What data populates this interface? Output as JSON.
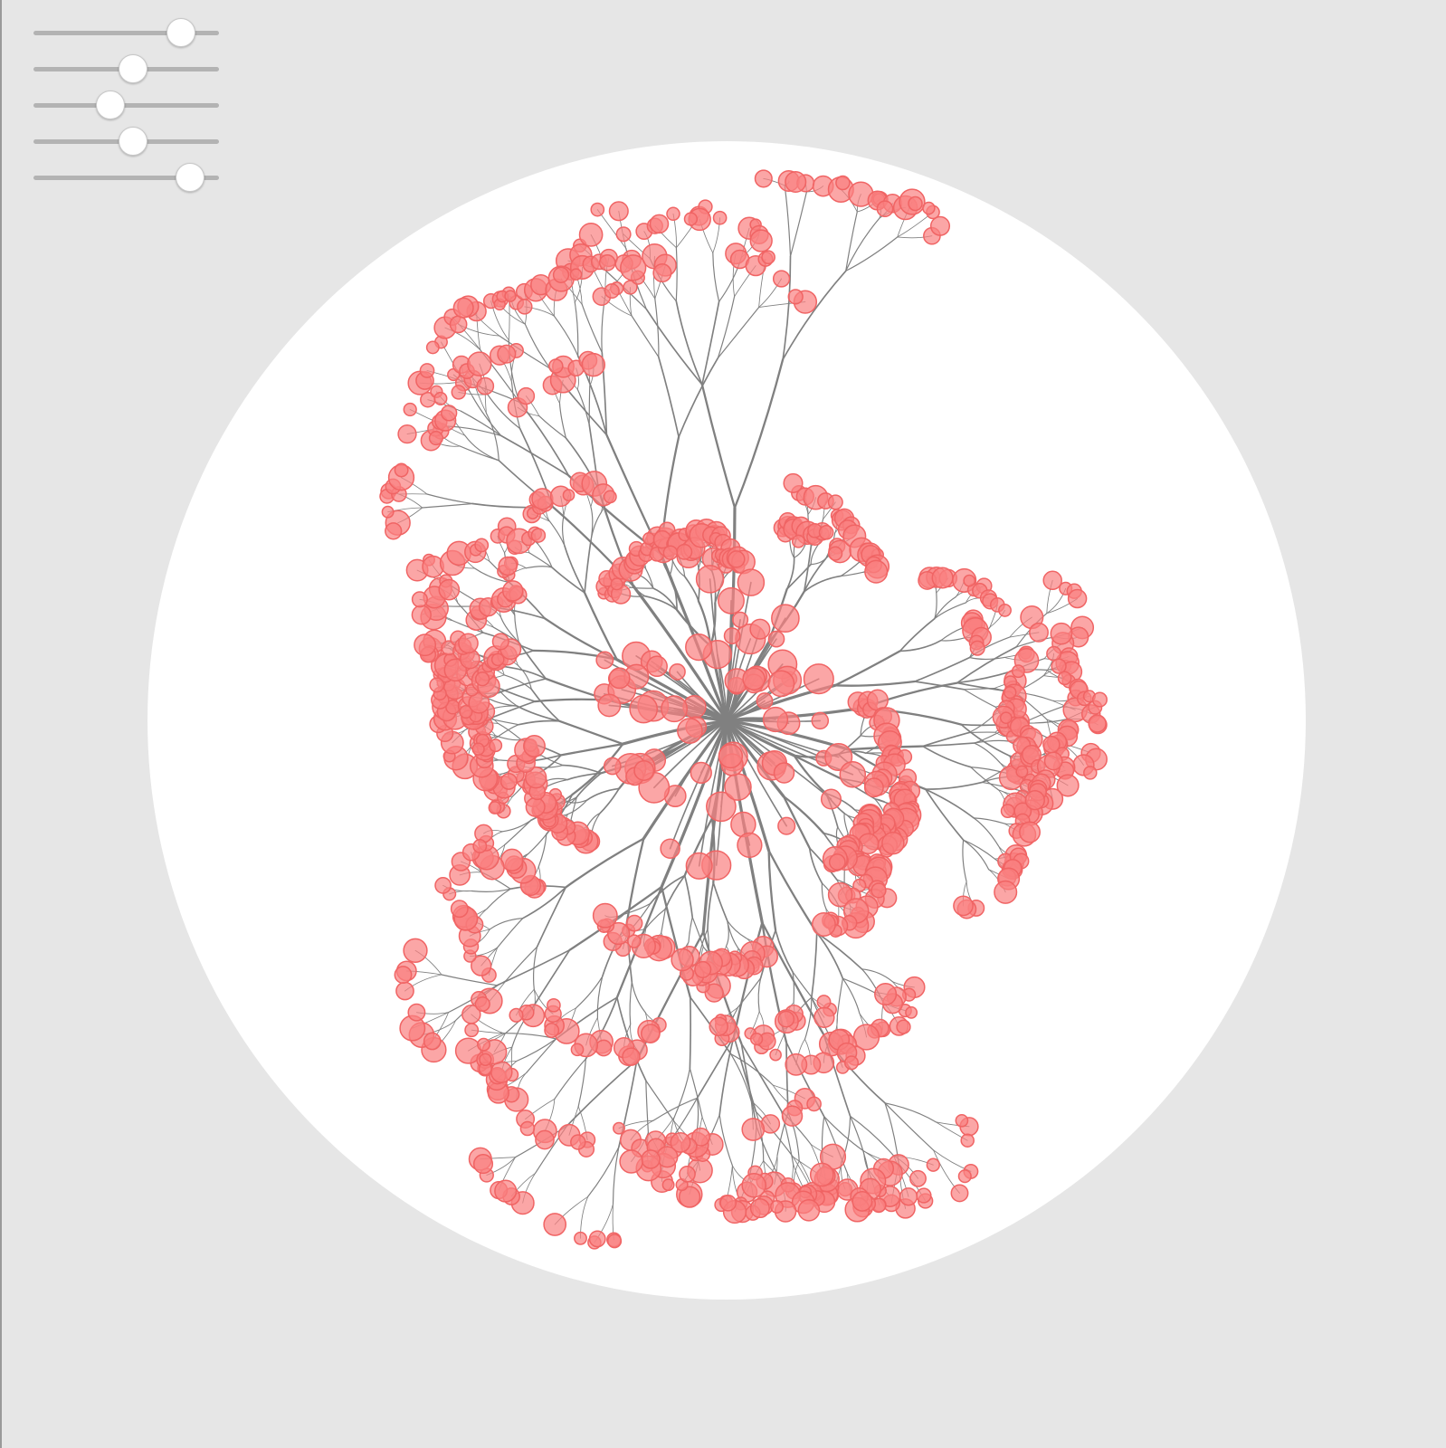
{
  "controls": {
    "sliders": [
      {
        "id": "slider-1",
        "value": 0.79
      },
      {
        "id": "slider-2",
        "value": 0.53
      },
      {
        "id": "slider-3",
        "value": 0.41
      },
      {
        "id": "slider-4",
        "value": 0.53
      },
      {
        "id": "slider-5",
        "value": 0.84
      }
    ]
  },
  "colors": {
    "background": "#e6e6e6",
    "canvas": "#ffffff",
    "branch": "#808080",
    "node_fill": "#fa8080",
    "node_stroke": "#f06464",
    "slider_track": "#b3b3b3",
    "slider_thumb": "#ffffff"
  }
}
